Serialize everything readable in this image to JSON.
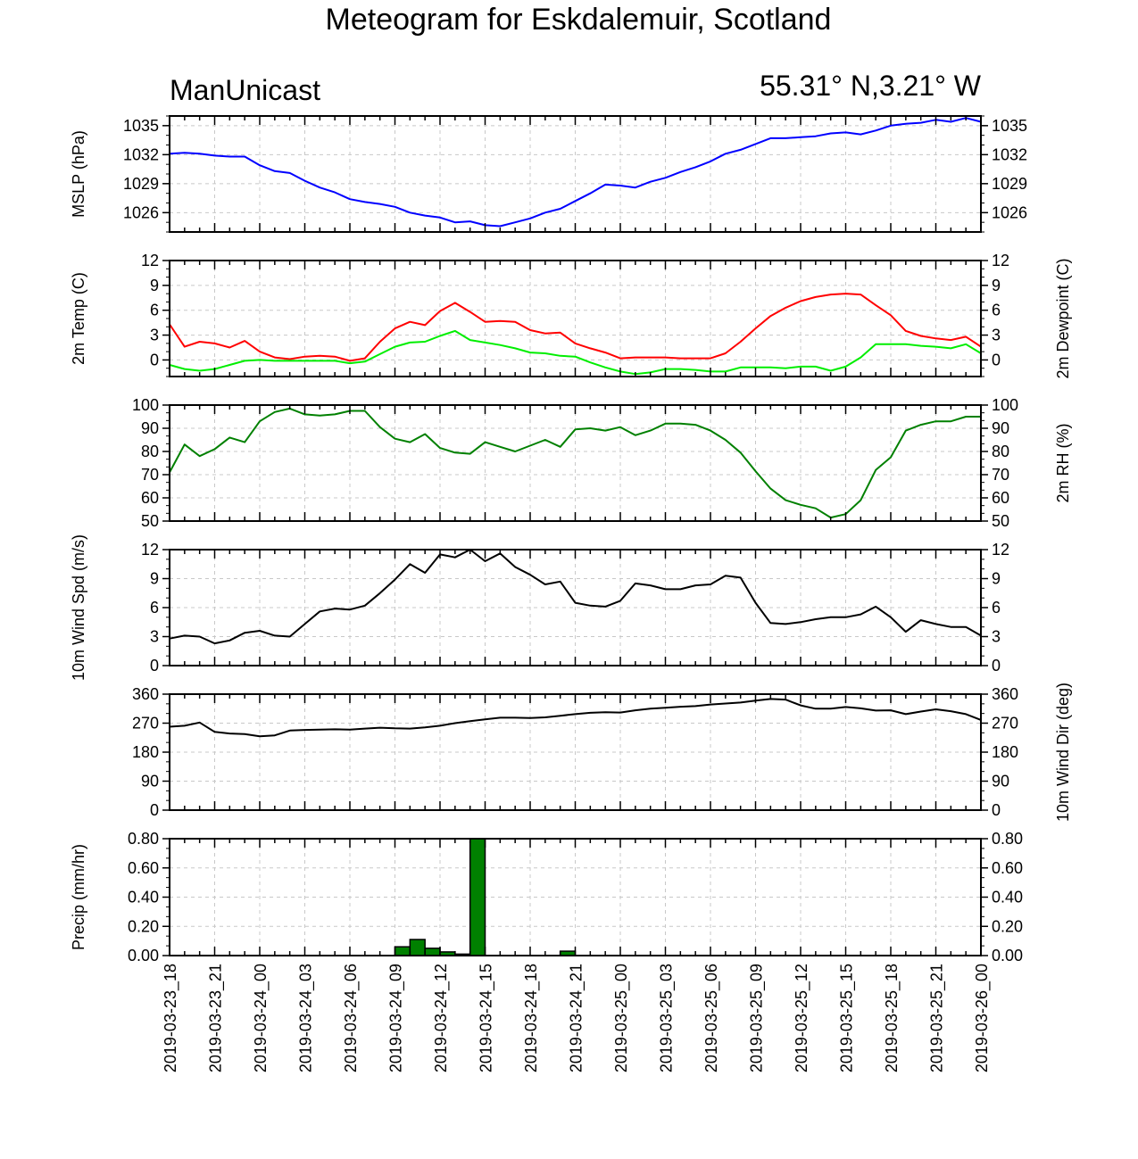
{
  "title": "Meteogram for Eskdalemuir, Scotland",
  "model": "ManUnicast",
  "location": "55.31° N,3.21° W",
  "chart_data": [
    {
      "id": "mslp",
      "type": "line",
      "ylabel_left": "MSLP (hPa)",
      "ylabel_right": "",
      "ylim": [
        1024,
        1036
      ],
      "ticks": [
        1026,
        1029,
        1032,
        1035
      ],
      "tick_labels": [
        "1026",
        "1029",
        "1032",
        "1035"
      ],
      "right_ticks": true,
      "grid": true,
      "x_hours": [
        0,
        1,
        2,
        3,
        4,
        5,
        6,
        7,
        8,
        9,
        10,
        11,
        12,
        13,
        14,
        15,
        16,
        17,
        18,
        19,
        20,
        21,
        22,
        23,
        24,
        25,
        26,
        27,
        28,
        29,
        30,
        31,
        32,
        33,
        34,
        35,
        36,
        37,
        38,
        39,
        40,
        41,
        42,
        43,
        44,
        45,
        46,
        47,
        48,
        49,
        50,
        51,
        52,
        53,
        54
      ],
      "series": [
        {
          "color": "#0000ff",
          "values": [
            1032.1,
            1032.2,
            1032.1,
            1031.9,
            1031.8,
            1031.8,
            1030.9,
            1030.3,
            1030.1,
            1029.3,
            1028.6,
            1028.1,
            1027.4,
            1027.1,
            1026.9,
            1026.6,
            1026.0,
            1025.7,
            1025.5,
            1025.0,
            1025.1,
            1024.7,
            1024.6,
            1025.0,
            1025.4,
            1026.0,
            1026.4,
            1027.2,
            1028.0,
            1028.9,
            1028.8,
            1028.6,
            1029.2,
            1029.6,
            1030.2,
            1030.7,
            1031.3,
            1032.1,
            1032.5,
            1033.1,
            1033.7,
            1033.7,
            1033.8,
            1033.9,
            1034.2,
            1034.3,
            1034.1,
            1034.5,
            1035.0,
            1035.2,
            1035.3,
            1035.6,
            1035.4,
            1035.8,
            1035.4
          ]
        }
      ]
    },
    {
      "id": "temp",
      "type": "line",
      "ylabel_left": "2m Temp (C)",
      "ylabel_right": "2m Dewpoint (C)",
      "ylim": [
        -2,
        12
      ],
      "ticks": [
        0,
        3,
        6,
        9,
        12
      ],
      "tick_labels": [
        "0",
        "3",
        "6",
        "9",
        "12"
      ],
      "right_ticks": true,
      "grid": true,
      "x_hours": [
        0,
        1,
        2,
        3,
        4,
        5,
        6,
        7,
        8,
        9,
        10,
        11,
        12,
        13,
        14,
        15,
        16,
        17,
        18,
        19,
        20,
        21,
        22,
        23,
        24,
        25,
        26,
        27,
        28,
        29,
        30,
        31,
        32,
        33,
        34,
        35,
        36,
        37,
        38,
        39,
        40,
        41,
        42,
        43,
        44,
        45,
        46,
        47,
        48,
        49,
        50,
        51,
        52,
        53,
        54
      ],
      "series": [
        {
          "color": "#ff0000",
          "values": [
            4.3,
            1.6,
            2.2,
            2.0,
            1.5,
            2.3,
            1.0,
            0.3,
            0.1,
            0.4,
            0.5,
            0.4,
            -0.1,
            0.2,
            2.2,
            3.8,
            4.6,
            4.2,
            5.9,
            6.9,
            5.8,
            4.6,
            4.7,
            4.6,
            3.6,
            3.2,
            3.3,
            2.0,
            1.4,
            0.9,
            0.2,
            0.3,
            0.3,
            0.3,
            0.2,
            0.2,
            0.2,
            0.8,
            2.2,
            3.8,
            5.3,
            6.3,
            7.1,
            7.6,
            7.9,
            8.0,
            7.9,
            6.6,
            5.4,
            3.5,
            2.9,
            2.6,
            2.4,
            2.8,
            1.6
          ]
        },
        {
          "color": "#00ee00",
          "values": [
            -0.6,
            -1.1,
            -1.3,
            -1.1,
            -0.6,
            -0.1,
            0.0,
            -0.1,
            -0.1,
            -0.1,
            -0.1,
            -0.1,
            -0.4,
            -0.2,
            0.7,
            1.6,
            2.1,
            2.2,
            2.9,
            3.5,
            2.4,
            2.1,
            1.8,
            1.4,
            0.9,
            0.8,
            0.5,
            0.4,
            -0.3,
            -0.9,
            -1.4,
            -1.7,
            -1.5,
            -1.1,
            -1.1,
            -1.2,
            -1.4,
            -1.4,
            -0.9,
            -0.9,
            -0.9,
            -1.0,
            -0.8,
            -0.8,
            -1.3,
            -0.8,
            0.3,
            1.9,
            1.9,
            1.9,
            1.7,
            1.6,
            1.4,
            1.9,
            0.8
          ]
        }
      ]
    },
    {
      "id": "rh",
      "type": "line",
      "ylabel_left": "",
      "ylabel_right": "2m RH (%)",
      "ylim": [
        50,
        100
      ],
      "ticks": [
        50,
        60,
        70,
        80,
        90,
        100
      ],
      "tick_labels": [
        "50",
        "60",
        "70",
        "80",
        "90",
        "100"
      ],
      "right_ticks": true,
      "grid": true,
      "x_hours": [
        0,
        1,
        2,
        3,
        4,
        5,
        6,
        7,
        8,
        9,
        10,
        11,
        12,
        13,
        14,
        15,
        16,
        17,
        18,
        19,
        20,
        21,
        22,
        23,
        24,
        25,
        26,
        27,
        28,
        29,
        30,
        31,
        32,
        33,
        34,
        35,
        36,
        37,
        38,
        39,
        40,
        41,
        42,
        43,
        44,
        45,
        46,
        47,
        48,
        49,
        50,
        51,
        52,
        53,
        54
      ],
      "series": [
        {
          "color": "#008000",
          "values": [
            71,
            83,
            78,
            81,
            86,
            84,
            93,
            97,
            98.5,
            96,
            95.5,
            96,
            97.5,
            97.5,
            90.5,
            85.5,
            84,
            87.5,
            81.5,
            79.5,
            79,
            84,
            82,
            80,
            82.5,
            85,
            82,
            89.5,
            90,
            89,
            90.5,
            87,
            89,
            92,
            92,
            91.5,
            89,
            85,
            79.5,
            71.5,
            64,
            59,
            57,
            55.5,
            51.5,
            53,
            59,
            72,
            77.5,
            89,
            91.5,
            93,
            93,
            95,
            95
          ]
        }
      ]
    },
    {
      "id": "wspd",
      "type": "line",
      "ylabel_left": "10m Wind Spd (m/s)",
      "ylabel_right": "",
      "ylim": [
        0,
        12
      ],
      "ticks": [
        0,
        3,
        6,
        9,
        12
      ],
      "tick_labels": [
        "0",
        "3",
        "6",
        "9",
        "12"
      ],
      "right_ticks": true,
      "grid": true,
      "x_hours": [
        0,
        1,
        2,
        3,
        4,
        5,
        6,
        7,
        8,
        9,
        10,
        11,
        12,
        13,
        14,
        15,
        16,
        17,
        18,
        19,
        20,
        21,
        22,
        23,
        24,
        25,
        26,
        27,
        28,
        29,
        30,
        31,
        32,
        33,
        34,
        35,
        36,
        37,
        38,
        39,
        40,
        41,
        42,
        43,
        44,
        45,
        46,
        47,
        48,
        49,
        50,
        51,
        52,
        53,
        54
      ],
      "series": [
        {
          "color": "#000000",
          "values": [
            2.8,
            3.1,
            3.0,
            2.3,
            2.6,
            3.4,
            3.6,
            3.1,
            3.0,
            4.3,
            5.6,
            5.9,
            5.8,
            6.2,
            7.5,
            8.9,
            10.5,
            9.6,
            11.5,
            11.2,
            12.0,
            10.8,
            11.6,
            10.2,
            9.4,
            8.4,
            8.7,
            6.5,
            6.2,
            6.1,
            6.7,
            8.5,
            8.3,
            7.9,
            7.9,
            8.3,
            8.4,
            9.3,
            9.1,
            6.5,
            4.4,
            4.3,
            4.5,
            4.8,
            5.0,
            5.0,
            5.3,
            6.1,
            5.0,
            3.5,
            4.7,
            4.3,
            4.0,
            4.0,
            3.1
          ]
        }
      ]
    },
    {
      "id": "wdir",
      "type": "line",
      "ylabel_left": "",
      "ylabel_right": "10m Wind Dir (deg)",
      "ylim": [
        0,
        360
      ],
      "ticks": [
        0,
        90,
        180,
        270,
        360
      ],
      "tick_labels": [
        "0",
        "90",
        "180",
        "270",
        "360"
      ],
      "right_ticks": true,
      "grid": true,
      "x_hours": [
        0,
        1,
        2,
        3,
        4,
        5,
        6,
        7,
        8,
        9,
        10,
        11,
        12,
        13,
        14,
        15,
        16,
        17,
        18,
        19,
        20,
        21,
        22,
        23,
        24,
        25,
        26,
        27,
        28,
        29,
        30,
        31,
        32,
        33,
        34,
        35,
        36,
        37,
        38,
        39,
        40,
        41,
        42,
        43,
        44,
        45,
        46,
        47,
        48,
        49,
        50,
        51,
        52,
        53,
        54
      ],
      "series": [
        {
          "color": "#000000",
          "values": [
            259,
            262,
            272,
            243,
            238,
            236,
            229,
            232,
            247,
            249,
            250,
            251,
            250,
            253,
            256,
            254,
            253,
            257,
            262,
            270,
            276,
            282,
            287,
            287,
            286,
            288,
            293,
            298,
            302,
            304,
            303,
            310,
            315,
            318,
            321,
            323,
            328,
            331,
            334,
            340,
            345,
            343,
            325,
            315,
            315,
            320,
            316,
            309,
            310,
            298,
            306,
            313,
            307,
            298,
            280
          ]
        }
      ]
    },
    {
      "id": "precip",
      "type": "bar",
      "ylabel_left": "Precip (mm/hr)",
      "ylabel_right": "",
      "ylim": [
        0,
        0.8
      ],
      "ticks": [
        0,
        0.2,
        0.4,
        0.6,
        0.8
      ],
      "tick_labels": [
        "0.00",
        "0.20",
        "0.40",
        "0.60",
        "0.80"
      ],
      "right_ticks": true,
      "grid": true,
      "bar_color": "#008000",
      "bars": [
        {
          "start_hour": 15,
          "value": 0.06
        },
        {
          "start_hour": 16,
          "value": 0.11
        },
        {
          "start_hour": 17,
          "value": 0.05
        },
        {
          "start_hour": 18,
          "value": 0.025
        },
        {
          "start_hour": 19,
          "value": 0.01
        },
        {
          "start_hour": 20,
          "value": 0.8
        },
        {
          "start_hour": 26,
          "value": 0.03
        }
      ]
    }
  ],
  "x_axis": {
    "range_hours": [
      0,
      54
    ],
    "tick_hours": [
      0,
      3,
      6,
      9,
      12,
      15,
      18,
      21,
      24,
      27,
      30,
      33,
      36,
      39,
      42,
      45,
      48,
      51,
      54
    ],
    "tick_labels": [
      "2019-03-23_18",
      "2019-03-23_21",
      "2019-03-24_00",
      "2019-03-24_03",
      "2019-03-24_06",
      "2019-03-24_09",
      "2019-03-24_12",
      "2019-03-24_15",
      "2019-03-24_18",
      "2019-03-24_21",
      "2019-03-25_00",
      "2019-03-25_03",
      "2019-03-25_06",
      "2019-03-25_09",
      "2019-03-25_12",
      "2019-03-25_15",
      "2019-03-25_18",
      "2019-03-25_21",
      "2019-03-26_00"
    ]
  }
}
